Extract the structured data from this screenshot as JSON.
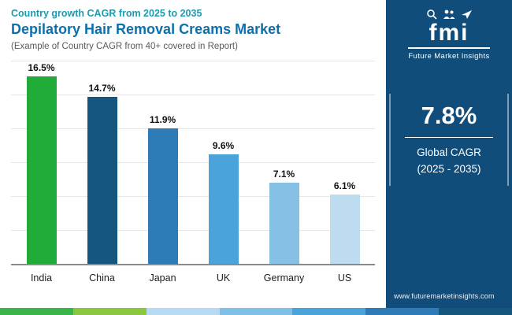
{
  "header": {
    "eyebrow": "Country growth CAGR from 2025 to 2035",
    "title": "Depilatory Hair Removal Creams Market",
    "subtitle": "(Example of Country CAGR from 40+ covered in Report)"
  },
  "sidebar": {
    "logo": "fmi",
    "brand": "Future Market Insights",
    "global_cagr_value": "7.8%",
    "global_cagr_label": "Global CAGR",
    "global_cagr_period": "(2025 - 2035)",
    "website": "www.futuremarketinsights.com",
    "background_color": "#114d7a"
  },
  "chart_data": {
    "type": "bar",
    "title": "Depilatory Hair Removal Creams Market",
    "subtitle": "Country growth CAGR from 2025 to 2035",
    "categories": [
      "India",
      "China",
      "Japan",
      "UK",
      "Germany",
      "US"
    ],
    "values": [
      16.5,
      14.7,
      11.9,
      9.6,
      7.1,
      6.1
    ],
    "value_labels": [
      "16.5%",
      "14.7%",
      "11.9%",
      "9.6%",
      "7.1%",
      "6.1%"
    ],
    "unit": "%",
    "ylim": [
      0,
      18
    ],
    "grid": true,
    "legend": false,
    "bar_colors": [
      "#21ab38",
      "#15567e",
      "#2d7cb8",
      "#4aa4da",
      "#86c0e4",
      "#bedcf0"
    ]
  },
  "footer_stripe_colors": [
    "#39b54a",
    "#8dc63f",
    "#b5daf1",
    "#7fc0e6",
    "#4aa4da",
    "#2d7cb8",
    "#15567e"
  ]
}
